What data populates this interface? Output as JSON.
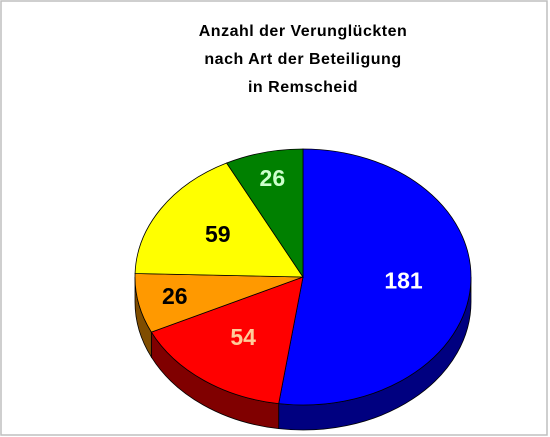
{
  "chart_data": {
    "type": "pie",
    "title": [
      "Anzahl der Verunglückten",
      "nach Art der Beteiligung",
      "in Remscheid"
    ],
    "values": [
      181,
      54,
      26,
      59,
      26
    ],
    "colors": [
      "#0000ff",
      "#ff0000",
      "#ff9900",
      "#ffff00",
      "#008000"
    ],
    "label_colors": [
      "#ffffff",
      "#ffcc99",
      "#000000",
      "#000000",
      "#ccffcc"
    ]
  }
}
